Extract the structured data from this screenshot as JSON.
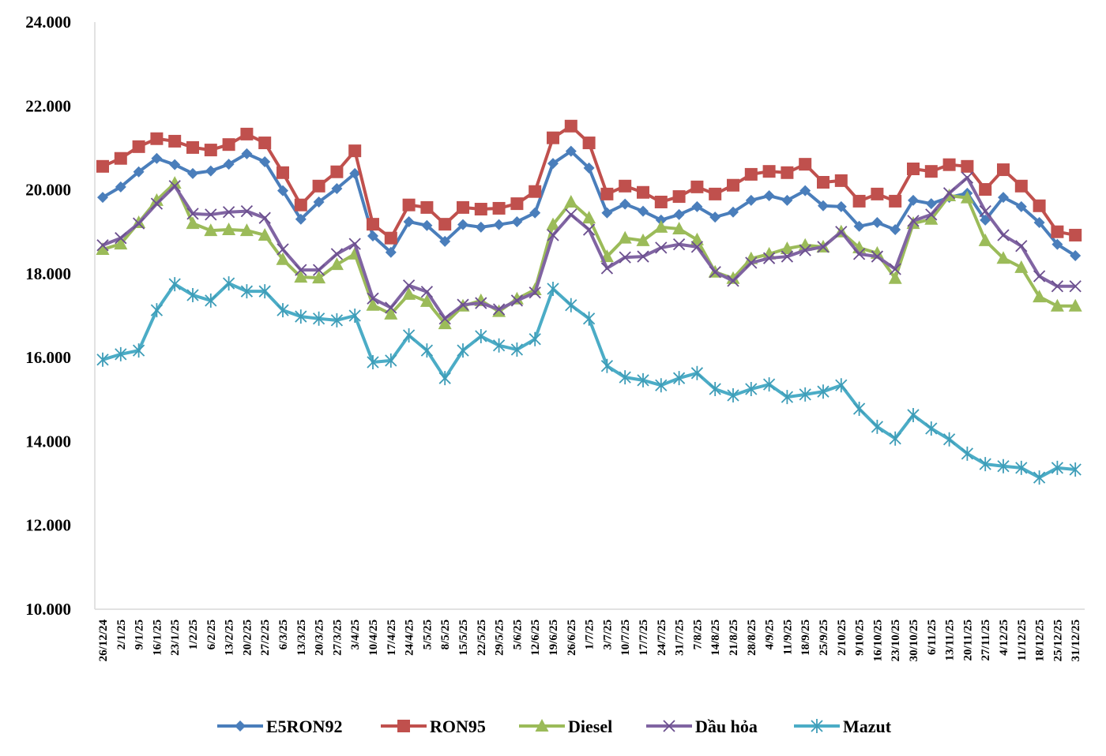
{
  "chart_data": {
    "type": "line",
    "title": "",
    "xlabel": "",
    "ylabel": "",
    "ylim": [
      10000,
      24000
    ],
    "yticks": [
      "10.000",
      "12.000",
      "14.000",
      "16.000",
      "18.000",
      "20.000",
      "22.000",
      "24.000"
    ],
    "ytick_values": [
      10000,
      12000,
      14000,
      16000,
      18000,
      20000,
      22000,
      24000
    ],
    "grid": false,
    "legend_position": "bottom",
    "categories": [
      "26/12/24",
      "2/1/25",
      "9/1/25",
      "16/1/25",
      "23/1/25",
      "1/2/25",
      "6/2/25",
      "13/2/25",
      "20/2/25",
      "27/2/25",
      "6/3/25",
      "13/3/25",
      "20/3/25",
      "27/3/25",
      "3/4/25",
      "10/4/25",
      "17/4/25",
      "24/4/25",
      "5/5/25",
      "8/5/25",
      "15/5/25",
      "22/5/25",
      "29/5/25",
      "5/6/25",
      "12/6/25",
      "19/6/25",
      "26/6/25",
      "1/7/25",
      "3/7/25",
      "10/7/25",
      "17/7/25",
      "24/7/25",
      "31/7/25",
      "7/8/25",
      "14/8/25",
      "21/8/25",
      "28/8/25",
      "4/9/25",
      "11/9/25",
      "18/9/25",
      "25/9/25",
      "2/10/25",
      "9/10/25",
      "16/10/25",
      "23/10/25",
      "30/10/25",
      "6/11/25",
      "13/11/25",
      "20/11/25",
      "27/11/25",
      "4/12/25",
      "11/12/25",
      "18/12/25",
      "25/12/25",
      "31/12/25"
    ],
    "series": [
      {
        "name": "E5RON92",
        "color": "#4A7EBB",
        "marker": "diamond",
        "values": [
          19820,
          20070,
          20430,
          20750,
          20600,
          20390,
          20450,
          20610,
          20860,
          20670,
          19980,
          19300,
          19710,
          20030,
          20390,
          18900,
          18510,
          19240,
          19150,
          18770,
          19170,
          19110,
          19170,
          19240,
          19450,
          20630,
          20920,
          20520,
          19450,
          19660,
          19490,
          19280,
          19410,
          19600,
          19350,
          19470,
          19750,
          19860,
          19750,
          19980,
          19620,
          19600,
          19130,
          19220,
          19050,
          19750,
          19670,
          19820,
          19920,
          19280,
          19820,
          19600,
          19220,
          18700,
          18430
        ]
      },
      {
        "name": "RON95",
        "color": "#C0504D",
        "marker": "square",
        "values": [
          20560,
          20750,
          21030,
          21220,
          21160,
          21010,
          20950,
          21080,
          21330,
          21120,
          20410,
          19640,
          20090,
          20430,
          20930,
          19180,
          18850,
          19640,
          19580,
          19180,
          19580,
          19540,
          19560,
          19670,
          19960,
          21240,
          21520,
          21120,
          19900,
          20090,
          19940,
          19710,
          19840,
          20070,
          19900,
          20110,
          20370,
          20440,
          20410,
          20610,
          20180,
          20220,
          19730,
          19900,
          19730,
          20500,
          20440,
          20600,
          20560,
          20010,
          20480,
          20090,
          19620,
          19000,
          18920
        ]
      },
      {
        "name": "Diesel",
        "color": "#9BBB59",
        "marker": "triangle",
        "values": [
          18580,
          18710,
          19220,
          19750,
          20160,
          19200,
          19030,
          19050,
          19030,
          18920,
          18340,
          17920,
          17900,
          18220,
          18470,
          17250,
          17040,
          17510,
          17340,
          16810,
          17230,
          17360,
          17100,
          17400,
          17620,
          19170,
          19710,
          19330,
          18410,
          18850,
          18790,
          19110,
          19070,
          18810,
          18040,
          17890,
          18360,
          18470,
          18600,
          18680,
          18640,
          19000,
          18620,
          18490,
          17890,
          19200,
          19300,
          19860,
          19810,
          18790,
          18370,
          18150,
          17450,
          17230,
          17230
        ]
      },
      {
        "name": "Dầu hỏa",
        "color": "#8064A2",
        "marker": "x",
        "values": [
          18680,
          18850,
          19200,
          19670,
          20090,
          19430,
          19410,
          19470,
          19490,
          19330,
          18580,
          18090,
          18090,
          18470,
          18710,
          17410,
          17190,
          17720,
          17570,
          16930,
          17260,
          17300,
          17150,
          17360,
          17550,
          18920,
          19410,
          19050,
          18130,
          18390,
          18410,
          18620,
          18700,
          18640,
          18040,
          17830,
          18260,
          18370,
          18410,
          18560,
          18640,
          19000,
          18470,
          18410,
          18110,
          19260,
          19410,
          19920,
          20290,
          19490,
          18920,
          18660,
          17940,
          17700,
          17700
        ]
      },
      {
        "name": "Mazut",
        "color": "#4BACC6",
        "marker": "star",
        "values": [
          15950,
          16080,
          16170,
          17130,
          17750,
          17490,
          17360,
          17770,
          17580,
          17580,
          17130,
          16980,
          16930,
          16890,
          17000,
          15890,
          15930,
          16530,
          16170,
          15510,
          16170,
          16510,
          16290,
          16190,
          16440,
          17640,
          17250,
          16930,
          15800,
          15530,
          15460,
          15340,
          15510,
          15630,
          15250,
          15100,
          15250,
          15360,
          15060,
          15120,
          15190,
          15340,
          14780,
          14350,
          14070,
          14630,
          14310,
          14050,
          13710,
          13460,
          13410,
          13370,
          13140,
          13370,
          13330
        ]
      }
    ]
  }
}
